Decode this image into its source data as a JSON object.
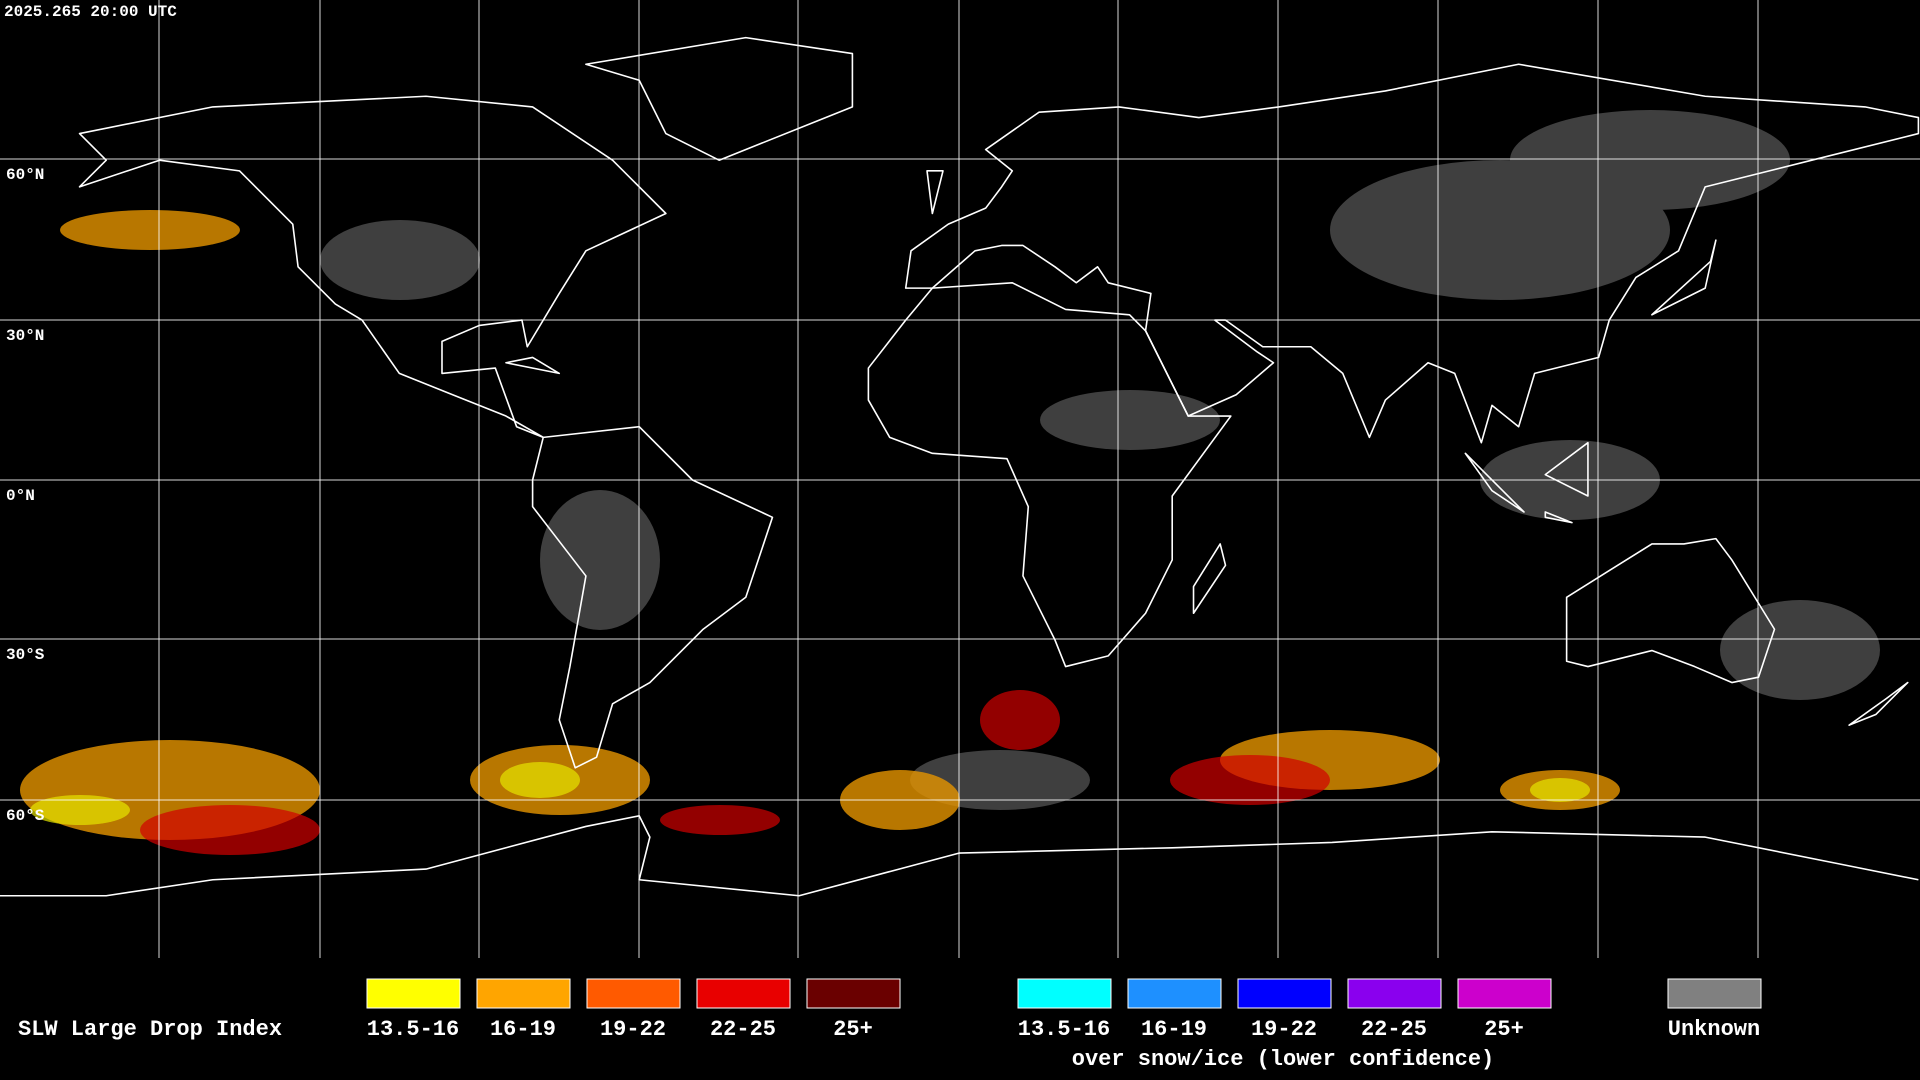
{
  "header": {
    "timestamp": "2025.265 20:00 UTC"
  },
  "grid": {
    "latitude_labels": [
      "60°N",
      "30°N",
      "0°N",
      "30°S",
      "60°S"
    ]
  },
  "legend": {
    "title": "SLW Large Drop Index",
    "groups": [
      {
        "items": [
          {
            "label": "13.5-16",
            "color": "#ffff00"
          },
          {
            "label": "16-19",
            "color": "#ffa500"
          },
          {
            "label": "19-22",
            "color": "#ff5a00"
          },
          {
            "label": "22-25",
            "color": "#e80000"
          },
          {
            "label": "25+",
            "color": "#6a0000"
          }
        ]
      },
      {
        "items": [
          {
            "label": "13.5-16",
            "color": "#00ffff"
          },
          {
            "label": "16-19",
            "color": "#1e90ff"
          },
          {
            "label": "19-22",
            "color": "#0000ff"
          },
          {
            "label": "22-25",
            "color": "#8a00ee"
          },
          {
            "label": "25+",
            "color": "#cc00cc"
          }
        ],
        "caption": "over snow/ice (lower confidence)"
      }
    ],
    "unknown": {
      "label": "Unknown",
      "color": "#808080"
    }
  }
}
